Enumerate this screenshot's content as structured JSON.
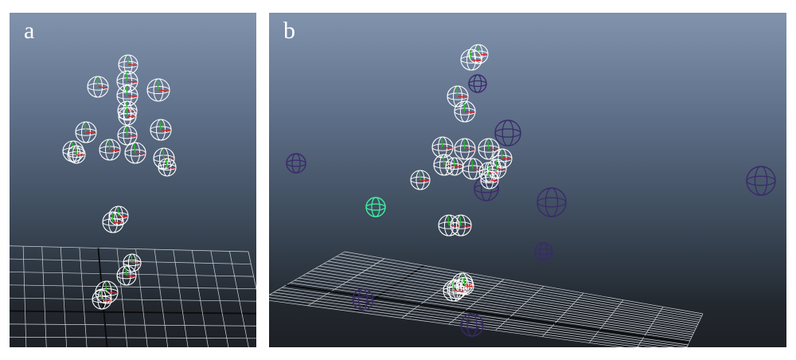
{
  "panels": [
    {
      "id": "a",
      "label": "a"
    },
    {
      "id": "b",
      "label": "b"
    }
  ],
  "colors": {
    "background": "#ffffff",
    "sky_top": "#8193ad",
    "floor": "#1d2126",
    "grid_line": "#cfd3d8",
    "grid_axis": "#0a0a0a",
    "sphere_white": "#ffffff",
    "sphere_dark": "#3a2a6a",
    "sphere_cyan": "#3df0a0",
    "axis_red": "#e02020",
    "axis_green": "#20c020"
  },
  "icons": [
    "wireframe-sphere-icon",
    "ground-grid"
  ]
}
